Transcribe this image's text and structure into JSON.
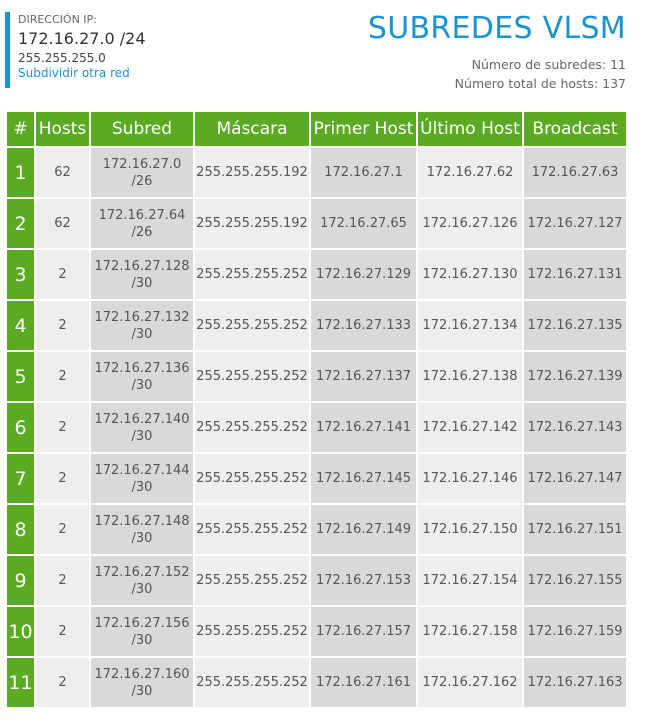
{
  "header": {
    "ip_label": "DIRECCIÓN IP:",
    "ip_value": "172.16.27.0 /24",
    "ip_mask": "255.255.255.0",
    "subdivide_link": "Subdividir otra red",
    "title": "SUBREDES VLSM",
    "subnet_count": "Número de subredes: 11",
    "total_hosts": "Número total de hosts: 137"
  },
  "colors": {
    "accent_blue": "#1a93d0",
    "header_green": "#5aab22",
    "cell_light": "#eeeeee",
    "cell_dark": "#d9d9d9"
  },
  "table": {
    "columns": [
      "#",
      "Hosts",
      "Subred",
      "Máscara",
      "Primer Host",
      "Último Host",
      "Broadcast"
    ],
    "rows": [
      {
        "n": "1",
        "hosts": "62",
        "subnet": "172.16.27.0",
        "prefix": "/26",
        "mask": "255.255.255.192",
        "first": "172.16.27.1",
        "last": "172.16.27.62",
        "broadcast": "172.16.27.63"
      },
      {
        "n": "2",
        "hosts": "62",
        "subnet": "172.16.27.64",
        "prefix": "/26",
        "mask": "255.255.255.192",
        "first": "172.16.27.65",
        "last": "172.16.27.126",
        "broadcast": "172.16.27.127"
      },
      {
        "n": "3",
        "hosts": "2",
        "subnet": "172.16.27.128",
        "prefix": "/30",
        "mask": "255.255.255.252",
        "first": "172.16.27.129",
        "last": "172.16.27.130",
        "broadcast": "172.16.27.131"
      },
      {
        "n": "4",
        "hosts": "2",
        "subnet": "172.16.27.132",
        "prefix": "/30",
        "mask": "255.255.255.252",
        "first": "172.16.27.133",
        "last": "172.16.27.134",
        "broadcast": "172.16.27.135"
      },
      {
        "n": "5",
        "hosts": "2",
        "subnet": "172.16.27.136",
        "prefix": "/30",
        "mask": "255.255.255.252",
        "first": "172.16.27.137",
        "last": "172.16.27.138",
        "broadcast": "172.16.27.139"
      },
      {
        "n": "6",
        "hosts": "2",
        "subnet": "172.16.27.140",
        "prefix": "/30",
        "mask": "255.255.255.252",
        "first": "172.16.27.141",
        "last": "172.16.27.142",
        "broadcast": "172.16.27.143"
      },
      {
        "n": "7",
        "hosts": "2",
        "subnet": "172.16.27.144",
        "prefix": "/30",
        "mask": "255.255.255.252",
        "first": "172.16.27.145",
        "last": "172.16.27.146",
        "broadcast": "172.16.27.147"
      },
      {
        "n": "8",
        "hosts": "2",
        "subnet": "172.16.27.148",
        "prefix": "/30",
        "mask": "255.255.255.252",
        "first": "172.16.27.149",
        "last": "172.16.27.150",
        "broadcast": "172.16.27.151"
      },
      {
        "n": "9",
        "hosts": "2",
        "subnet": "172.16.27.152",
        "prefix": "/30",
        "mask": "255.255.255.252",
        "first": "172.16.27.153",
        "last": "172.16.27.154",
        "broadcast": "172.16.27.155"
      },
      {
        "n": "10",
        "hosts": "2",
        "subnet": "172.16.27.156",
        "prefix": "/30",
        "mask": "255.255.255.252",
        "first": "172.16.27.157",
        "last": "172.16.27.158",
        "broadcast": "172.16.27.159"
      },
      {
        "n": "11",
        "hosts": "2",
        "subnet": "172.16.27.160",
        "prefix": "/30",
        "mask": "255.255.255.252",
        "first": "172.16.27.161",
        "last": "172.16.27.162",
        "broadcast": "172.16.27.163"
      }
    ]
  }
}
